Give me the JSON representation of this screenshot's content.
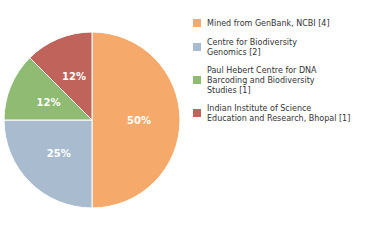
{
  "chart_data": {
    "type": "pie",
    "categories": [
      "Mined from GenBank, NCBI [4]",
      "Centre for Biodiversity\nGenomics [2]",
      "Paul Hebert Centre for DNA\nBarcoding and Biodiversity\nStudies [1]",
      "Indian Institute of Science\nEducation and Research, Bhopal [1]"
    ],
    "values": [
      50,
      25,
      12.5,
      12.5
    ],
    "value_labels": [
      "50%",
      "25%",
      "12%",
      "12%"
    ],
    "colors": [
      "#F5A96A",
      "#A8BBCF",
      "#8FBC72",
      "#C0635A"
    ],
    "data_labels": true,
    "legend": "right"
  }
}
